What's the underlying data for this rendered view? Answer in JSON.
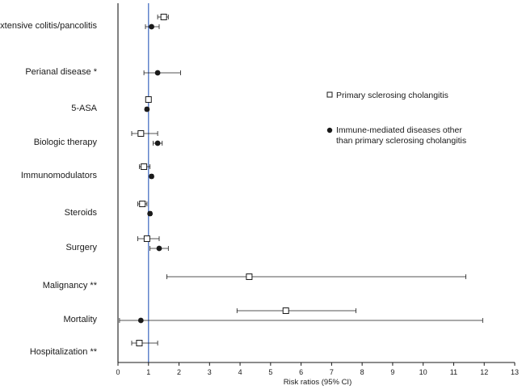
{
  "chart_data": {
    "type": "scatter",
    "subtype": "forest-plot",
    "xlabel": "Risk ratios (95% CI)",
    "xlim": [
      0,
      13
    ],
    "xticks": [
      0,
      1,
      2,
      3,
      4,
      5,
      6,
      7,
      8,
      9,
      10,
      11,
      12,
      13
    ],
    "reference_line": 1,
    "grid": false,
    "legend_position": "right",
    "colors": {
      "reference_line": "#4a72c4",
      "markers": "#1a1a1a",
      "axis": "#1a1a1a"
    },
    "categories": [
      "Extensive colitis/pancolitis",
      "Perianal disease *",
      "5-ASA",
      "Biologic therapy",
      "Immunomodulators",
      "Steroids",
      "Surgery",
      "Malignancy **",
      "Mortality",
      "Hospitalization **"
    ],
    "series": [
      {
        "name": "Primary sclerosing cholangitis",
        "marker": "open-square",
        "points": [
          {
            "category": "Extensive colitis/pancolitis",
            "value": 1.5,
            "lo": 1.3,
            "hi": 1.65
          },
          {
            "category": "5-ASA",
            "value": 1.0,
            "lo": 0.95,
            "hi": 1.05
          },
          {
            "category": "Biologic therapy",
            "value": 0.75,
            "lo": 0.45,
            "hi": 1.3
          },
          {
            "category": "Immunomodulators",
            "value": 0.85,
            "lo": 0.7,
            "hi": 1.05
          },
          {
            "category": "Steroids",
            "value": 0.8,
            "lo": 0.65,
            "hi": 0.95
          },
          {
            "category": "Surgery",
            "value": 0.95,
            "lo": 0.65,
            "hi": 1.35
          },
          {
            "category": "Malignancy **",
            "value": 4.3,
            "lo": 1.6,
            "hi": 11.4
          },
          {
            "category": "Mortality",
            "value": 5.5,
            "lo": 3.9,
            "hi": 7.8
          },
          {
            "category": "Hospitalization **",
            "value": 0.7,
            "lo": 0.45,
            "hi": 1.3
          }
        ]
      },
      {
        "name": "Immune-mediated diseases other than primary sclerosing cholangitis",
        "marker": "filled-circle",
        "points": [
          {
            "category": "Extensive colitis/pancolitis",
            "value": 1.1,
            "lo": 0.9,
            "hi": 1.35
          },
          {
            "category": "Perianal disease *",
            "value": 1.3,
            "lo": 0.85,
            "hi": 2.05
          },
          {
            "category": "5-ASA",
            "value": 0.95,
            "lo": 0.9,
            "hi": 1.0
          },
          {
            "category": "Biologic therapy",
            "value": 1.3,
            "lo": 1.15,
            "hi": 1.45
          },
          {
            "category": "Immunomodulators",
            "value": 1.1,
            "lo": 1.05,
            "hi": 1.15
          },
          {
            "category": "Steroids",
            "value": 1.05,
            "lo": 1.0,
            "hi": 1.1
          },
          {
            "category": "Surgery",
            "value": 1.35,
            "lo": 1.05,
            "hi": 1.65
          },
          {
            "category": "Mortality",
            "value": 0.75,
            "lo": 0.05,
            "hi": 11.95
          }
        ]
      }
    ]
  }
}
